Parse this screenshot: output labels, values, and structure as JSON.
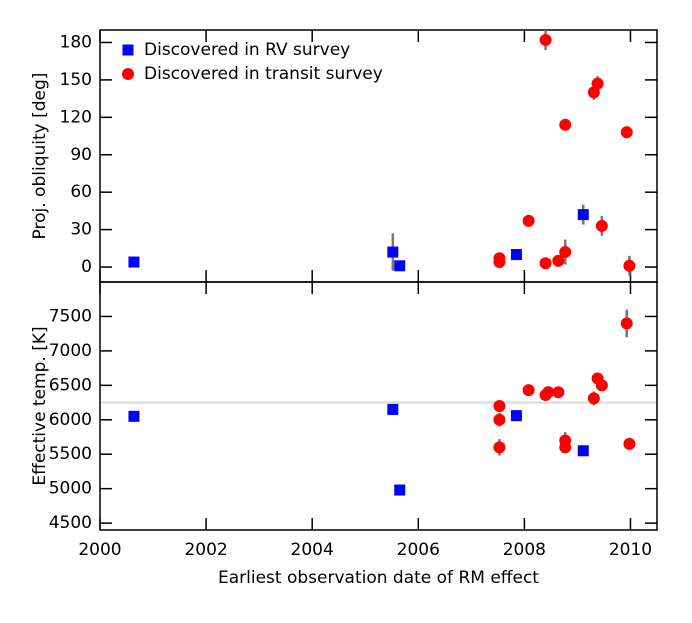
{
  "chart_data": [
    {
      "type": "scatter",
      "ylabel": "Proj. obliquity [deg]",
      "legend": "upper left",
      "xlim": [
        2000,
        2010.5
      ],
      "ylim": [
        -12,
        190
      ],
      "yticks": [
        0,
        30,
        60,
        90,
        120,
        150,
        180
      ],
      "series": [
        {
          "name": "Discovered in RV survey",
          "color": "#0000ff",
          "marker": "square",
          "x": [
            2000.64,
            2005.52,
            2005.65,
            2007.85,
            2009.11
          ],
          "values": [
            4,
            12,
            1,
            10,
            42
          ],
          "errors": [
            2,
            15,
            3,
            3,
            8
          ]
        },
        {
          "name": "Discovered in transit survey",
          "color": "#ff0000",
          "marker": "circle",
          "x": [
            2007.53,
            2007.53,
            2008.08,
            2008.4,
            2008.4,
            2008.64,
            2008.77,
            2008.77,
            2009.31,
            2009.38,
            2009.46,
            2009.93,
            2009.98
          ],
          "values": [
            4,
            7,
            37,
            182,
            3,
            5,
            114,
            12,
            140,
            147,
            33,
            108,
            1
          ],
          "errors": [
            3,
            3,
            2,
            8,
            2,
            2,
            3,
            10,
            6,
            6,
            8,
            3,
            8
          ]
        }
      ]
    },
    {
      "type": "scatter",
      "ylabel": "Effective temp. [K]",
      "xlabel": "Earliest observation date of RM effect",
      "xlim": [
        2000,
        2010.5
      ],
      "xticks": [
        2000,
        2002,
        2004,
        2006,
        2008,
        2010
      ],
      "ylim": [
        4400,
        8000
      ],
      "yticks": [
        4500,
        5000,
        5500,
        6000,
        6500,
        7000,
        7500
      ],
      "reference_line": 6250,
      "series": [
        {
          "color": "#0000ff",
          "marker": "square",
          "x": [
            2000.64,
            2005.52,
            2005.65,
            2007.85,
            2009.11
          ],
          "values": [
            6050,
            6150,
            4980,
            6060,
            5550
          ],
          "errors": [
            50,
            50,
            50,
            50,
            50
          ]
        },
        {
          "color": "#ff0000",
          "marker": "circle",
          "x": [
            2007.53,
            2007.53,
            2007.53,
            2008.08,
            2008.4,
            2008.45,
            2008.64,
            2008.77,
            2008.77,
            2009.31,
            2009.38,
            2009.46,
            2009.93,
            2009.98
          ],
          "values": [
            6200,
            6000,
            5600,
            6430,
            6360,
            6400,
            6400,
            5600,
            5700,
            6310,
            6600,
            6500,
            7400,
            5650
          ],
          "errors": [
            80,
            100,
            120,
            50,
            80,
            80,
            80,
            80,
            120,
            100,
            80,
            80,
            200,
            50
          ]
        }
      ]
    }
  ]
}
